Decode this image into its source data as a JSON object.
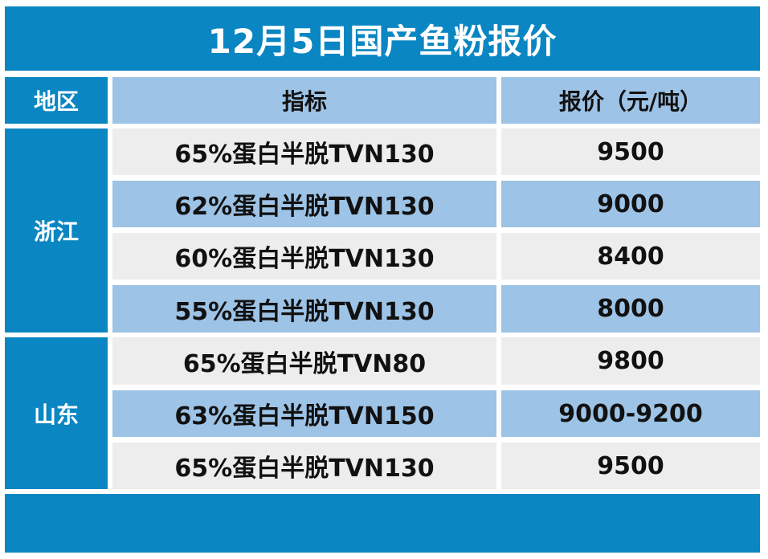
{
  "title": "12月5日国产鱼粉报价",
  "header": {
    "region": "地区",
    "indicator": "指标",
    "price": "报价（元/吨）"
  },
  "regions": [
    {
      "name": "浙江",
      "rows": [
        {
          "indicator": "65%蛋白半脱TVN130",
          "price": "9500"
        },
        {
          "indicator": "62%蛋白半脱TVN130",
          "price": "9000"
        },
        {
          "indicator": "60%蛋白半脱TVN130",
          "price": "8400"
        },
        {
          "indicator": "55%蛋白半脱TVN130",
          "price": "8000"
        }
      ]
    },
    {
      "name": "山东",
      "rows": [
        {
          "indicator": "65%蛋白半脱TVN80",
          "price": "9800"
        },
        {
          "indicator": "63%蛋白半脱TVN150",
          "price": "9000-9200"
        },
        {
          "indicator": "65%蛋白半脱TVN130",
          "price": "9500"
        }
      ]
    }
  ],
  "colors": {
    "primary_blue": "#0a86c2",
    "light_blue": "#9dc3e6",
    "light_gray": "#ededed"
  }
}
